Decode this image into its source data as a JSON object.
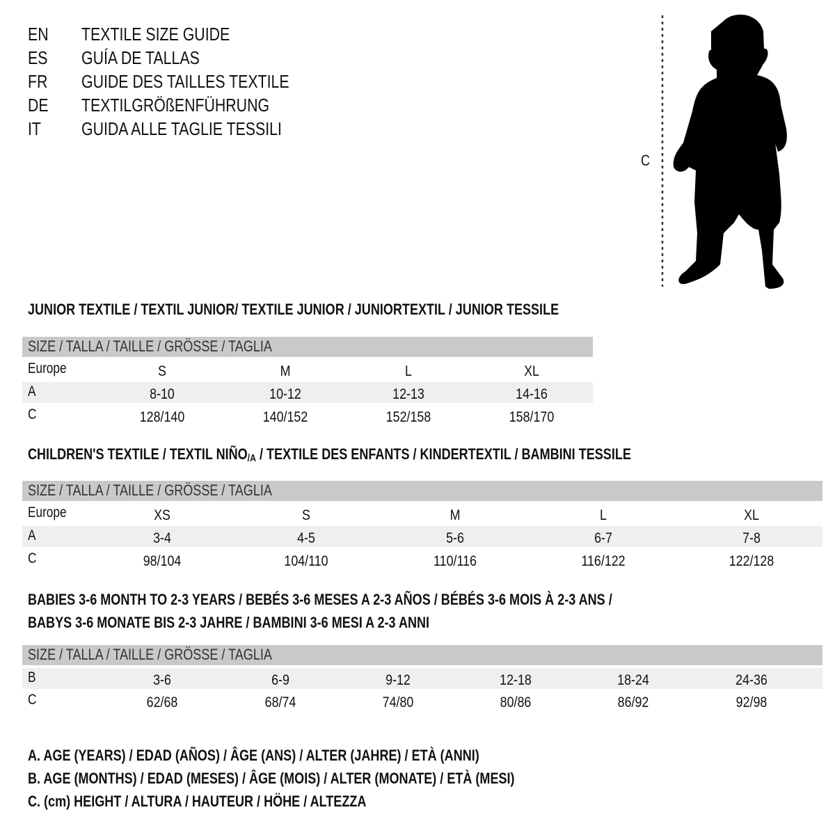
{
  "languages": [
    {
      "code": "EN",
      "title": "TEXTILE SIZE GUIDE"
    },
    {
      "code": "ES",
      "title": "GUÍA DE TALLAS"
    },
    {
      "code": "FR",
      "title": "GUIDE DES TAILLES TEXTILE"
    },
    {
      "code": "DE",
      "title": "TEXTILGRÖßENFÜHRUNG"
    },
    {
      "code": "IT",
      "title": "GUIDA ALLE TAGLIE TESSILI"
    }
  ],
  "figure": {
    "measure_label": "C",
    "icon": "child-silhouette-icon"
  },
  "size_header": "SIZE / TALLA / TAILLE / GRÖSSE / TAGLIA",
  "junior": {
    "heading": "JUNIOR TEXTILE / TEXTIL JUNIOR/ TEXTILE JUNIOR / JUNIORTEXTIL / JUNIOR TESSILE",
    "rows": [
      {
        "label": "Europe",
        "values": [
          "S",
          "M",
          "L",
          "XL"
        ]
      },
      {
        "label": "A",
        "values": [
          "8-10",
          "10-12",
          "12-13",
          "14-16"
        ]
      },
      {
        "label": "C",
        "values": [
          "128/140",
          "140/152",
          "152/158",
          "158/170"
        ]
      }
    ]
  },
  "children": {
    "heading_part1": "CHILDREN'S TEXTILE / TEXTIL NIÑO",
    "heading_sub": "/A",
    "heading_part2": " / TEXTILE DES ENFANTS / KINDERTEXTIL / BAMBINI TESSILE",
    "rows": [
      {
        "label": "Europe",
        "values": [
          "XS",
          "S",
          "M",
          "L",
          "XL"
        ]
      },
      {
        "label": "A",
        "values": [
          "3-4",
          "4-5",
          "5-6",
          "6-7",
          "7-8"
        ]
      },
      {
        "label": "C",
        "values": [
          "98/104",
          "104/110",
          "110/116",
          "116/122",
          "122/128"
        ]
      }
    ]
  },
  "babies": {
    "heading_line1": "BABIES 3-6 MONTH TO 2-3 YEARS / BEBÉS 3-6 MESES A 2-3 AÑOS / BÉBÉS 3-6 MOIS À 2-3 ANS /",
    "heading_line2": "BABYS 3-6 MONATE BIS 2-3 JAHRE / BAMBINI 3-6 MESI A 2-3 ANNI",
    "rows": [
      {
        "label": "B",
        "values": [
          "3-6",
          "6-9",
          "9-12",
          "12-18",
          "18-24",
          "24-36"
        ]
      },
      {
        "label": "C",
        "values": [
          "62/68",
          "68/74",
          "74/80",
          "80/86",
          "86/92",
          "92/98"
        ]
      }
    ]
  },
  "legend": [
    "A. AGE (YEARS) / EDAD (AÑOS) / ÂGE (ANS) / ALTER (JAHRE) / ETÀ (ANNI)",
    "B. AGE (MONTHS) / EDAD (MESES) / ÂGE (MOIS) / ALTER (MONATE) / ETÀ (MESI)",
    "C. (cm) HEIGHT / ALTURA / HAUTEUR / HÖHE / ALTEZZA"
  ],
  "colors": {
    "header_band": "#c9c9c9",
    "shaded_row": "#efefef"
  }
}
